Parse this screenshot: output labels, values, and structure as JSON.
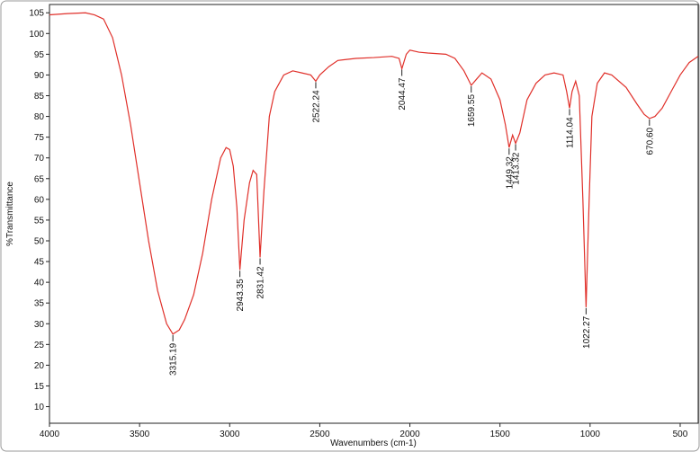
{
  "chart_data": {
    "type": "line",
    "color": "#e0302a",
    "xlabel": "Wavenumbers (cm-1)",
    "ylabel": "%Transmittance",
    "xlim": [
      4000,
      400
    ],
    "ylim": [
      6,
      107
    ],
    "xticks": [
      4000,
      3500,
      3000,
      2500,
      2000,
      1500,
      1000,
      500
    ],
    "yticks": [
      10,
      15,
      20,
      25,
      30,
      35,
      40,
      45,
      50,
      55,
      60,
      65,
      70,
      75,
      80,
      85,
      90,
      95,
      100,
      105
    ],
    "x": [
      4000,
      3900,
      3800,
      3750,
      3700,
      3650,
      3600,
      3550,
      3500,
      3450,
      3400,
      3350,
      3315.19,
      3280,
      3250,
      3200,
      3150,
      3100,
      3050,
      3020,
      3000,
      2980,
      2960,
      2943.35,
      2920,
      2890,
      2870,
      2850,
      2831.42,
      2810,
      2780,
      2750,
      2700,
      2650,
      2600,
      2550,
      2522.24,
      2500,
      2450,
      2400,
      2300,
      2200,
      2100,
      2060,
      2044.47,
      2020,
      2000,
      1950,
      1900,
      1800,
      1750,
      1700,
      1659.55,
      1630,
      1600,
      1550,
      1500,
      1470,
      1449.32,
      1430,
      1413.32,
      1390,
      1350,
      1300,
      1250,
      1200,
      1150,
      1130,
      1114.04,
      1100,
      1080,
      1060,
      1040,
      1022.27,
      1005,
      990,
      960,
      920,
      880,
      800,
      740,
      700,
      670.6,
      640,
      600,
      550,
      500,
      450,
      400
    ],
    "values": [
      104.5,
      104.8,
      105,
      104.5,
      103.5,
      99,
      90,
      78,
      64,
      50,
      38,
      30,
      27.5,
      28.5,
      31,
      37,
      47,
      60,
      70,
      72.5,
      72,
      68,
      58,
      43,
      55,
      64,
      67,
      66,
      46,
      62,
      80,
      86,
      90,
      91,
      90.5,
      90,
      88.5,
      90,
      92,
      93.5,
      94,
      94.2,
      94.5,
      94,
      91.5,
      95,
      96,
      95.5,
      95.3,
      95,
      94,
      91,
      87.5,
      89,
      90.5,
      89,
      84,
      78,
      72.5,
      75.5,
      73.5,
      76,
      84,
      88,
      90,
      90.5,
      90,
      86,
      82,
      86,
      88.5,
      85,
      60,
      34,
      60,
      80,
      88,
      90.5,
      90,
      87,
      83,
      80.5,
      79.5,
      80,
      82,
      86,
      90,
      93,
      94.5
    ],
    "annotations": [
      {
        "x": 3315.19,
        "y": 27.5,
        "label": "3315.19"
      },
      {
        "x": 2943.35,
        "y": 43,
        "label": "2943.35"
      },
      {
        "x": 2831.42,
        "y": 46,
        "label": "2831.42"
      },
      {
        "x": 2522.24,
        "y": 88.5,
        "label": "2522.24"
      },
      {
        "x": 2044.47,
        "y": 91.5,
        "label": "2044.47"
      },
      {
        "x": 1659.55,
        "y": 87.5,
        "label": "1659.55"
      },
      {
        "x": 1449.32,
        "y": 72.5,
        "label": "1449.32"
      },
      {
        "x": 1413.32,
        "y": 73.5,
        "label": "1413.32"
      },
      {
        "x": 1114.04,
        "y": 82,
        "label": "1114.04"
      },
      {
        "x": 1022.27,
        "y": 34,
        "label": "1022.27"
      },
      {
        "x": 670.6,
        "y": 79.5,
        "label": "670.60"
      }
    ]
  }
}
